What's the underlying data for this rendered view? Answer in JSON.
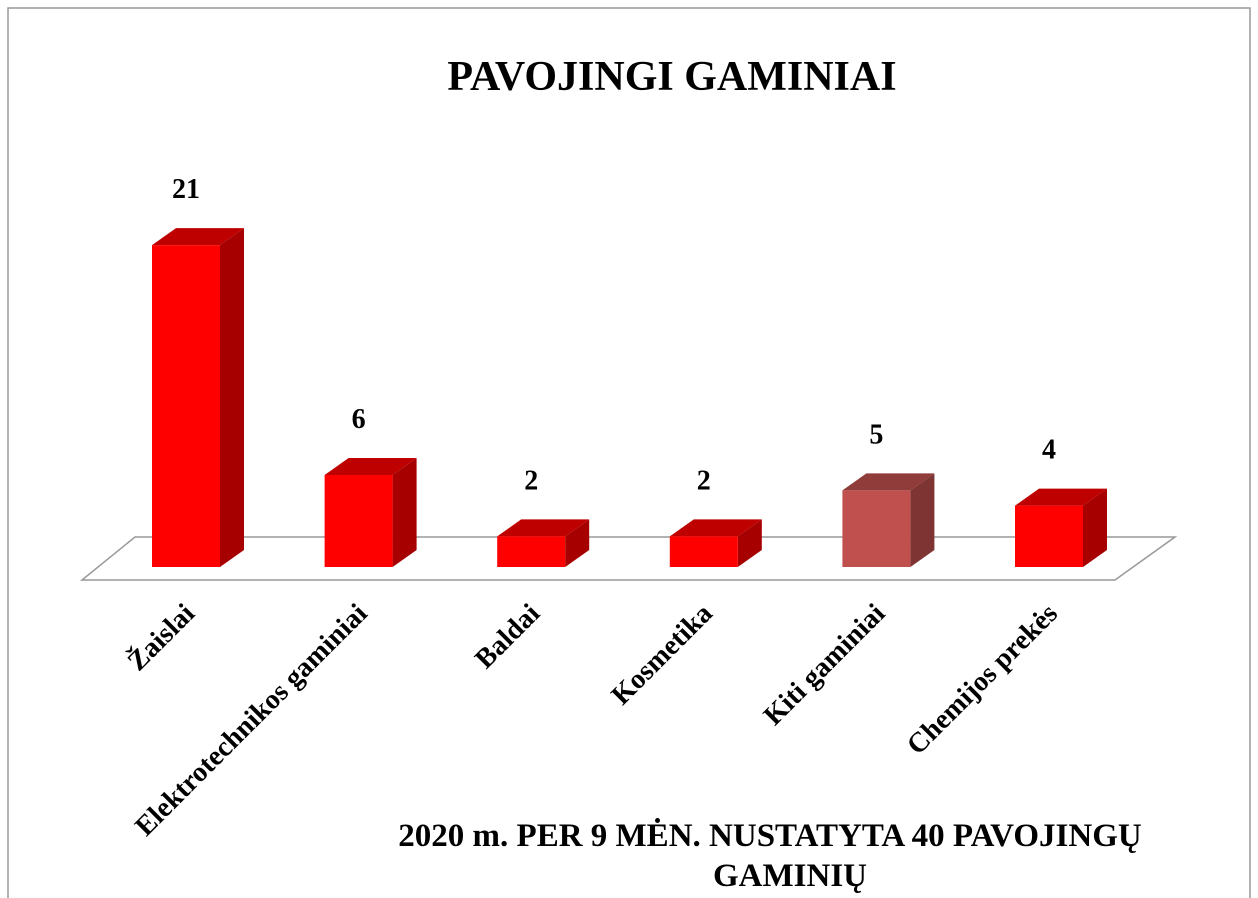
{
  "chart_data": {
    "type": "bar3d",
    "title": "PAVOJINGI GAMINIAI",
    "categories": [
      "Žaislai",
      "Elektrotechnikos gaminiai",
      "Baldai",
      "Kosmetika",
      "Kiti gaminiai",
      "Chemijos prekės"
    ],
    "values": [
      21,
      6,
      2,
      2,
      5,
      4
    ],
    "colors": [
      "#ff0000",
      "#ff0000",
      "#ff0000",
      "#ff0000",
      "#c0504d",
      "#ff0000"
    ],
    "annotation": [
      "2020 m. PER 9 MĖN. NUSTATYTA  40 PAVOJINGŲ",
      "GAMINIŲ"
    ]
  }
}
